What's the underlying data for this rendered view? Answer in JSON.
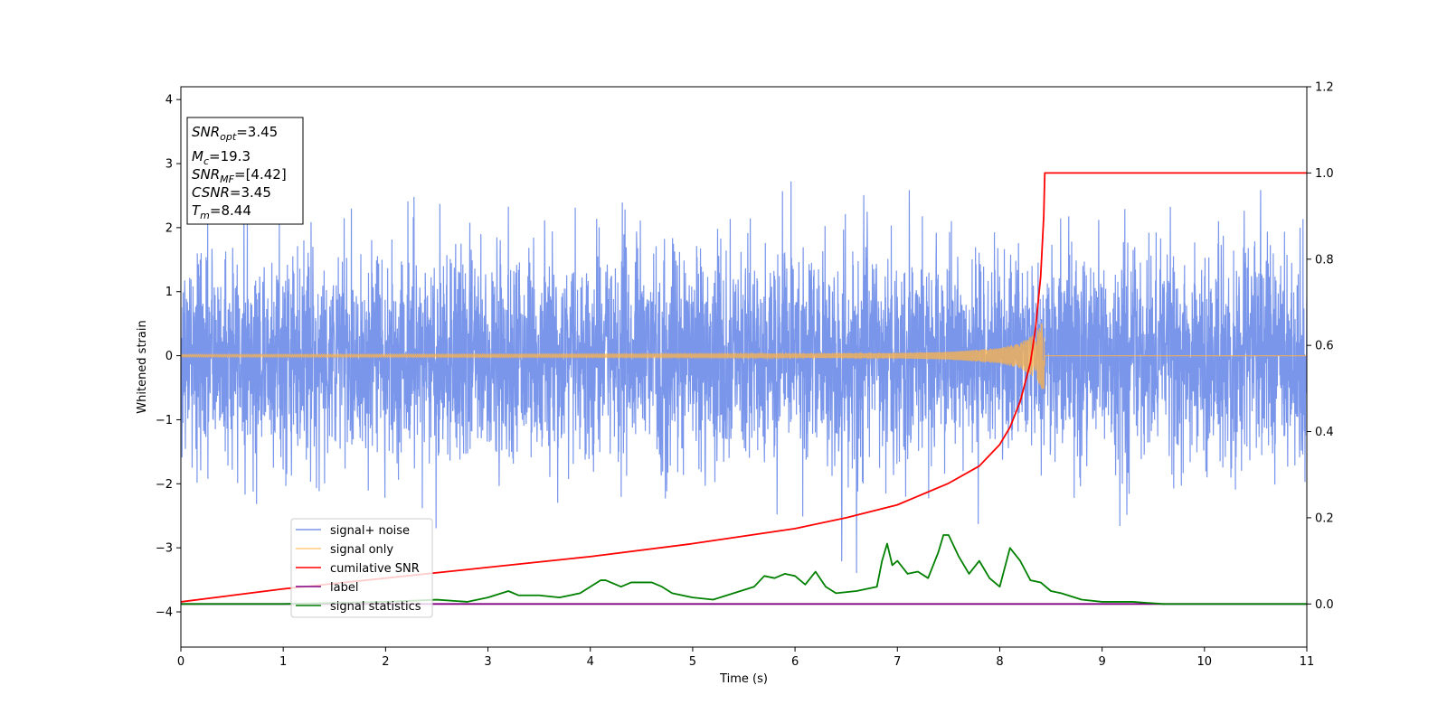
{
  "chart_data": {
    "type": "line",
    "title": "",
    "xlabel": "Time (s)",
    "ylabel": "Whitened strain",
    "y2label": "",
    "xlim": [
      0,
      11
    ],
    "ylim": [
      -4.55,
      4.2
    ],
    "y2lim": [
      -0.1,
      1.2
    ],
    "x_ticks": [
      0,
      1,
      2,
      3,
      4,
      5,
      6,
      7,
      8,
      9,
      10,
      11
    ],
    "y_ticks": [
      -4,
      -3,
      -2,
      -1,
      0,
      1,
      2,
      3,
      4
    ],
    "y2_ticks": [
      0.0,
      0.2,
      0.4,
      0.6,
      0.8,
      1.0,
      1.2
    ],
    "grid": false,
    "legend_position": "lower-left",
    "merger_time": 8.44,
    "annotation": {
      "snr_opt": "3.45",
      "mc": "19.3",
      "snr_mf": "[4.42]",
      "csnr": "3.45",
      "tm": "8.44"
    },
    "series": [
      {
        "name": "signal+ noise",
        "color": "#4169e1",
        "axis": "left",
        "description_values": "noise band approx -2.5 to 2.5, peaks near 3.5 and -4.2"
      },
      {
        "name": "signal only",
        "color": "#ffb347",
        "axis": "left",
        "x": [
          0,
          6,
          7,
          7.5,
          8.0,
          8.2,
          8.35,
          8.44
        ],
        "amplitude": [
          0.02,
          0.03,
          0.04,
          0.06,
          0.12,
          0.2,
          0.35,
          0.6
        ]
      },
      {
        "name": "cumilative SNR",
        "color": "#ff0000",
        "axis": "right",
        "x": [
          0,
          0.5,
          1,
          2,
          3,
          4,
          5,
          6,
          6.5,
          7,
          7.5,
          7.8,
          8.0,
          8.1,
          8.2,
          8.3,
          8.35,
          8.4,
          8.43,
          8.44,
          11
        ],
        "values": [
          0.005,
          0.02,
          0.035,
          0.06,
          0.085,
          0.11,
          0.14,
          0.175,
          0.2,
          0.23,
          0.28,
          0.32,
          0.37,
          0.41,
          0.47,
          0.56,
          0.64,
          0.76,
          0.9,
          1.0,
          1.0
        ]
      },
      {
        "name": "label",
        "color": "#800080",
        "axis": "right",
        "x": [
          0,
          11
        ],
        "values": [
          0,
          0
        ]
      },
      {
        "name": "signal statistics",
        "color": "#008000",
        "axis": "right",
        "x": [
          0,
          1,
          2,
          2.5,
          2.8,
          3.0,
          3.2,
          3.3,
          3.5,
          3.7,
          3.9,
          4.0,
          4.1,
          4.15,
          4.3,
          4.4,
          4.6,
          4.7,
          4.8,
          5.0,
          5.2,
          5.4,
          5.6,
          5.7,
          5.8,
          5.9,
          6.0,
          6.1,
          6.2,
          6.3,
          6.4,
          6.6,
          6.8,
          6.85,
          6.9,
          6.95,
          7.0,
          7.1,
          7.2,
          7.3,
          7.4,
          7.45,
          7.5,
          7.6,
          7.7,
          7.8,
          7.9,
          8.0,
          8.1,
          8.2,
          8.3,
          8.4,
          8.5,
          8.6,
          8.8,
          9.0,
          9.3,
          9.6,
          10.0,
          11.0
        ],
        "values": [
          0.0,
          0.0,
          0.005,
          0.01,
          0.005,
          0.015,
          0.03,
          0.02,
          0.02,
          0.015,
          0.025,
          0.04,
          0.055,
          0.055,
          0.04,
          0.05,
          0.05,
          0.04,
          0.025,
          0.015,
          0.01,
          0.025,
          0.04,
          0.065,
          0.06,
          0.07,
          0.065,
          0.045,
          0.075,
          0.04,
          0.025,
          0.03,
          0.04,
          0.1,
          0.14,
          0.09,
          0.1,
          0.07,
          0.075,
          0.06,
          0.12,
          0.16,
          0.16,
          0.11,
          0.07,
          0.1,
          0.06,
          0.04,
          0.13,
          0.1,
          0.055,
          0.05,
          0.03,
          0.025,
          0.01,
          0.005,
          0.005,
          0.0,
          0.0,
          0.0
        ]
      }
    ]
  }
}
